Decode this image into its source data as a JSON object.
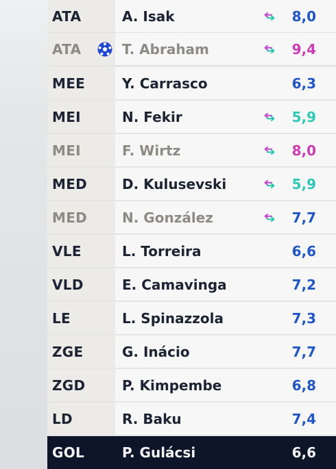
{
  "colors": {
    "rating_blue": "#1f56c9",
    "rating_pink": "#cf3bb4",
    "rating_teal": "#2ec9b6",
    "swap_pink": "#c04ad0",
    "swap_teal": "#28c7b0",
    "ball_blue": "#1d47d6",
    "selected_row": "#0d1628"
  },
  "players": [
    {
      "position": "ATA",
      "name": "A. Isak",
      "rating": "8,0",
      "rating_color": "blue",
      "dimmed": false,
      "swap_icon": true,
      "ball_icon": false
    },
    {
      "position": "ATA",
      "name": "T. Abraham",
      "rating": "9,4",
      "rating_color": "pink",
      "dimmed": true,
      "swap_icon": true,
      "ball_icon": true
    },
    {
      "position": "MEE",
      "name": "Y. Carrasco",
      "rating": "6,3",
      "rating_color": "blue",
      "dimmed": false,
      "swap_icon": false,
      "ball_icon": false
    },
    {
      "position": "MEI",
      "name": "N. Fekir",
      "rating": "5,9",
      "rating_color": "teal",
      "dimmed": false,
      "swap_icon": true,
      "ball_icon": false
    },
    {
      "position": "MEI",
      "name": "F. Wirtz",
      "rating": "8,0",
      "rating_color": "pink",
      "dimmed": true,
      "swap_icon": true,
      "ball_icon": false
    },
    {
      "position": "MED",
      "name": "D. Kulusevski",
      "rating": "5,9",
      "rating_color": "teal",
      "dimmed": false,
      "swap_icon": true,
      "ball_icon": false
    },
    {
      "position": "MED",
      "name": "N. González",
      "rating": "7,7",
      "rating_color": "blue",
      "dimmed": true,
      "swap_icon": true,
      "ball_icon": false
    },
    {
      "position": "VLE",
      "name": "L. Torreira",
      "rating": "6,6",
      "rating_color": "blue",
      "dimmed": false,
      "swap_icon": false,
      "ball_icon": false
    },
    {
      "position": "VLD",
      "name": "E. Camavinga",
      "rating": "7,2",
      "rating_color": "blue",
      "dimmed": false,
      "swap_icon": false,
      "ball_icon": false
    },
    {
      "position": "LE",
      "name": "L. Spinazzola",
      "rating": "7,3",
      "rating_color": "blue",
      "dimmed": false,
      "swap_icon": false,
      "ball_icon": false
    },
    {
      "position": "ZGE",
      "name": "G. Inácio",
      "rating": "7,7",
      "rating_color": "blue",
      "dimmed": false,
      "swap_icon": false,
      "ball_icon": false
    },
    {
      "position": "ZGD",
      "name": "P. Kimpembe",
      "rating": "6,8",
      "rating_color": "blue",
      "dimmed": false,
      "swap_icon": false,
      "ball_icon": false
    },
    {
      "position": "LD",
      "name": "R. Baku",
      "rating": "7,4",
      "rating_color": "blue",
      "dimmed": false,
      "swap_icon": false,
      "ball_icon": false
    },
    {
      "position": "GOL",
      "name": "P. Gulácsi",
      "rating": "6,6",
      "rating_color": "blue",
      "dimmed": false,
      "swap_icon": false,
      "ball_icon": false,
      "selected": true
    }
  ]
}
